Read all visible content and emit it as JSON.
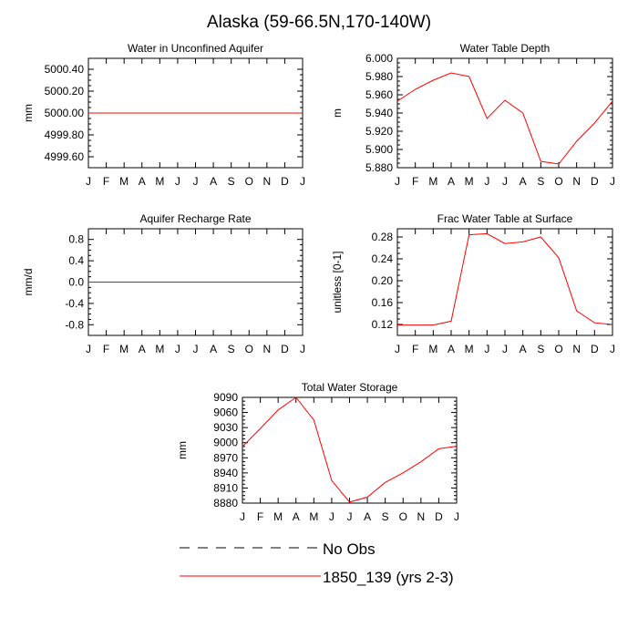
{
  "figure": {
    "title": "Alaska (59-66.5N,170-140W)"
  },
  "colors": {
    "model_line": "#ff0000",
    "obs_line": "#000000",
    "axis": "#000000"
  },
  "legend": {
    "placement": "bottom-center",
    "items": [
      {
        "label": "No Obs",
        "style": "dashed",
        "color": "#000000"
      },
      {
        "label": "1850_139 (yrs 2-3)",
        "style": "solid",
        "color": "#ff0000"
      }
    ]
  },
  "chart_data": [
    {
      "type": "line",
      "title": "Water in Unconfined Aquifer",
      "ylabel": "mm",
      "xlabel": "",
      "categories": [
        "J",
        "F",
        "M",
        "A",
        "M",
        "J",
        "J",
        "A",
        "S",
        "O",
        "N",
        "D",
        "J"
      ],
      "ylim": [
        4999.5,
        5000.5
      ],
      "yticks": [
        4999.6,
        4999.8,
        5000.0,
        5000.2,
        5000.4
      ],
      "yticklabels": [
        "4999.60",
        "4999.80",
        "5000.00",
        "5000.20",
        "5000.40"
      ],
      "series": [
        {
          "name": "1850_139 (yrs 2-3)",
          "color": "#ff0000",
          "values": [
            5000,
            5000,
            5000,
            5000,
            5000,
            5000,
            5000,
            5000,
            5000,
            5000,
            5000,
            5000,
            5000
          ]
        }
      ]
    },
    {
      "type": "line",
      "title": "Water Table Depth",
      "ylabel": "m",
      "xlabel": "",
      "categories": [
        "J",
        "F",
        "M",
        "A",
        "M",
        "J",
        "J",
        "A",
        "S",
        "O",
        "N",
        "D",
        "J"
      ],
      "ylim": [
        5.88,
        6.0
      ],
      "yticks": [
        5.88,
        5.9,
        5.92,
        5.94,
        5.96,
        5.98,
        6.0
      ],
      "yticklabels": [
        "5.880",
        "5.900",
        "5.920",
        "5.940",
        "5.960",
        "5.980",
        "6.000"
      ],
      "series": [
        {
          "name": "1850_139 (yrs 2-3)",
          "color": "#ff0000",
          "values": [
            5.953,
            5.966,
            5.976,
            5.984,
            5.98,
            5.934,
            5.954,
            5.94,
            5.887,
            5.884,
            5.909,
            5.929,
            5.953
          ]
        }
      ]
    },
    {
      "type": "line",
      "title": "Aquifer Recharge Rate",
      "ylabel": "mm/d",
      "xlabel": "",
      "categories": [
        "J",
        "F",
        "M",
        "A",
        "M",
        "J",
        "J",
        "A",
        "S",
        "O",
        "N",
        "D",
        "J"
      ],
      "ylim": [
        -1.0,
        1.0
      ],
      "yticks": [
        -0.8,
        -0.4,
        0.0,
        0.4,
        0.8
      ],
      "yticklabels": [
        "-0.8",
        "-0.4",
        "0.0",
        "0.4",
        "0.8"
      ],
      "series": [
        {
          "name": "1850_139 (yrs 2-3)",
          "color": "#ff0000",
          "values": [
            0,
            0,
            0,
            0,
            0,
            0,
            0,
            0,
            0,
            0,
            0,
            0,
            0
          ]
        }
      ]
    },
    {
      "type": "line",
      "title": "Frac Water Table at Surface",
      "ylabel": "unitless [0-1]",
      "xlabel": "",
      "categories": [
        "J",
        "F",
        "M",
        "A",
        "M",
        "J",
        "J",
        "A",
        "S",
        "O",
        "N",
        "D",
        "J"
      ],
      "ylim": [
        0.1,
        0.295
      ],
      "yticks": [
        0.12,
        0.16,
        0.2,
        0.24,
        0.28
      ],
      "yticklabels": [
        "0.12",
        "0.16",
        "0.20",
        "0.24",
        "0.28"
      ],
      "series": [
        {
          "name": "1850_139 (yrs 2-3)",
          "color": "#ff0000",
          "values": [
            0.119,
            0.119,
            0.119,
            0.126,
            0.284,
            0.286,
            0.268,
            0.271,
            0.28,
            0.242,
            0.145,
            0.123,
            0.12
          ]
        }
      ]
    },
    {
      "type": "line",
      "title": "Total Water Storage",
      "ylabel": "mm",
      "xlabel": "",
      "categories": [
        "J",
        "F",
        "M",
        "A",
        "M",
        "J",
        "J",
        "A",
        "S",
        "O",
        "N",
        "D",
        "J"
      ],
      "ylim": [
        8880,
        9090
      ],
      "yticks": [
        8880,
        8910,
        8940,
        8970,
        9000,
        9030,
        9060,
        9090
      ],
      "yticklabels": [
        "8880",
        "8910",
        "8940",
        "8970",
        "9000",
        "9030",
        "9060",
        "9090"
      ],
      "series": [
        {
          "name": "1850_139 (yrs 2-3)",
          "color": "#ff0000",
          "values": [
            8992,
            9028,
            9065,
            9090,
            9045,
            8925,
            8882,
            8892,
            8921,
            8940,
            8962,
            8988,
            8993
          ]
        }
      ]
    }
  ]
}
